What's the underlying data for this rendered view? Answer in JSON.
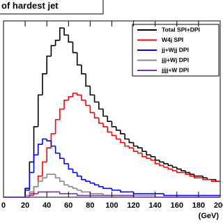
{
  "chart_data": {
    "type": "histogram",
    "title": "of hardest jet",
    "x_label": "(GeV)",
    "bins": [
      0,
      4,
      8,
      12,
      16,
      20,
      24,
      28,
      32,
      36,
      40,
      44,
      48,
      52,
      56,
      60,
      64,
      68,
      72,
      76,
      80,
      84,
      88,
      92,
      96,
      100,
      104,
      108,
      112,
      116,
      120,
      124,
      128,
      132,
      136,
      140,
      144,
      148,
      152,
      156,
      160,
      164,
      168,
      172,
      176,
      180,
      184,
      188,
      192,
      196,
      200
    ],
    "xlim": [
      0,
      200
    ],
    "xticks": [
      0,
      20,
      40,
      60,
      80,
      100,
      120,
      140,
      160,
      180,
      200
    ],
    "ylim": [
      0,
      100
    ],
    "legend": "top-right",
    "series": [
      {
        "name": "Total SPI+DPI",
        "color": "#000000",
        "values": [
          0,
          0,
          0,
          0,
          0,
          5,
          20,
          40,
          58,
          70,
          80,
          86,
          89,
          96,
          92,
          88,
          82,
          75,
          70,
          63,
          58,
          54,
          50,
          46,
          43,
          40,
          38,
          36,
          33,
          31,
          29,
          28,
          26,
          24,
          23,
          21,
          20,
          19,
          18,
          17,
          16,
          15,
          14,
          13,
          12,
          12,
          11,
          10,
          10,
          9
        ]
      },
      {
        "name": "W4j SPI",
        "color": "#ff0000",
        "values": [
          0,
          0,
          0,
          0,
          0,
          0,
          2,
          6,
          12,
          20,
          28,
          36,
          44,
          50,
          55,
          57,
          59,
          58,
          55,
          52,
          48,
          45,
          42,
          40,
          37,
          35,
          33,
          31,
          29,
          28,
          26,
          25,
          23,
          22,
          21,
          19,
          18,
          17,
          16,
          15,
          14,
          14,
          13,
          12,
          11,
          11,
          10,
          10,
          9,
          9
        ]
      },
      {
        "name": "jj+Wjj DPI",
        "color": "#0000ff",
        "values": [
          0,
          0,
          0,
          0,
          0,
          4,
          14,
          24,
          30,
          33,
          32,
          29,
          25,
          22,
          19,
          16,
          14,
          12,
          10,
          9,
          8,
          7,
          6,
          5,
          5,
          4,
          4,
          3,
          3,
          3,
          2,
          2,
          2,
          2,
          2,
          2,
          2,
          1,
          1,
          1,
          1,
          1,
          1,
          1,
          1,
          1,
          1,
          1,
          1,
          1
        ]
      },
      {
        "name": "jjj+Wj DPI",
        "color": "#888888",
        "values": [
          0,
          0,
          0,
          0,
          0,
          1,
          3,
          6,
          9,
          11,
          13,
          13,
          11,
          9,
          7,
          6,
          5,
          4,
          3,
          3,
          2,
          2,
          2,
          1,
          1,
          1,
          1,
          1,
          1,
          1,
          1,
          1,
          1,
          1,
          1,
          0,
          0,
          0,
          0,
          0,
          0,
          0,
          0,
          0,
          0,
          0,
          0,
          0,
          0,
          0
        ]
      },
      {
        "name": "jjjj+W DPI",
        "color": "#7a2fb0",
        "values": [
          0,
          0,
          0,
          0,
          0,
          0,
          1,
          2,
          3,
          3,
          3,
          3,
          3,
          2,
          2,
          2,
          2,
          1,
          1,
          1,
          1,
          1,
          1,
          1,
          1,
          1,
          1,
          1,
          1,
          1,
          0,
          0,
          0,
          0,
          0,
          0,
          0,
          0,
          0,
          0,
          0,
          0,
          0,
          0,
          0,
          0,
          0,
          0,
          0,
          0
        ]
      }
    ]
  }
}
